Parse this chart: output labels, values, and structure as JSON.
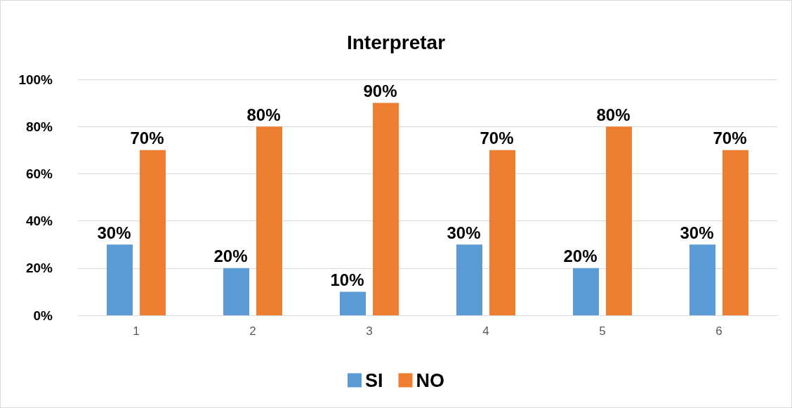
{
  "chart_data": {
    "type": "bar",
    "title": "Interpretar",
    "categories": [
      "1",
      "2",
      "3",
      "4",
      "5",
      "6"
    ],
    "series": [
      {
        "name": "SI",
        "color": "#5b9bd5",
        "values": [
          30,
          20,
          10,
          30,
          20,
          30
        ],
        "value_labels": [
          "30%",
          "20%",
          "10%",
          "30%",
          "20%",
          "30%"
        ]
      },
      {
        "name": "NO",
        "color": "#ed7d31",
        "values": [
          70,
          80,
          90,
          70,
          80,
          70
        ],
        "value_labels": [
          "70%",
          "80%",
          "90%",
          "70%",
          "80%",
          "70%"
        ]
      }
    ],
    "ylim": [
      0,
      100
    ],
    "yticks": [
      {
        "value": 0,
        "label": "0%"
      },
      {
        "value": 20,
        "label": "20%"
      },
      {
        "value": 40,
        "label": "40%"
      },
      {
        "value": 60,
        "label": "60%"
      },
      {
        "value": 80,
        "label": "80%"
      },
      {
        "value": 100,
        "label": "100%"
      }
    ],
    "grid": "y",
    "legend": "bottom"
  }
}
